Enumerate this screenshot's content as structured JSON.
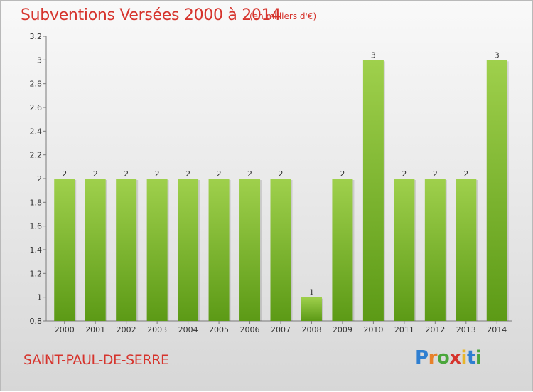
{
  "header": {
    "title": "Subventions Versées 2000 à 2014",
    "subtitle": "(en milliers d'€)"
  },
  "footer": {
    "town": "SAINT-PAUL-DE-SERRE",
    "logo": "Proxiti"
  },
  "colors": {
    "accent": "#d6342d",
    "bar_light": "#9fd04c",
    "bar_dark": "#5c9a16"
  },
  "chart_data": {
    "type": "bar",
    "title": "Subventions Versées 2000 à 2014",
    "subtitle": "(en milliers d'€)",
    "categories": [
      "2000",
      "2001",
      "2002",
      "2003",
      "2004",
      "2005",
      "2006",
      "2007",
      "2008",
      "2009",
      "2010",
      "2011",
      "2012",
      "2013",
      "2014"
    ],
    "values": [
      2,
      2,
      2,
      2,
      2,
      2,
      2,
      2,
      1,
      2,
      3,
      2,
      2,
      2,
      3
    ],
    "data_labels": [
      "2",
      "2",
      "2",
      "2",
      "2",
      "2",
      "2",
      "2",
      "1",
      "2",
      "3",
      "2",
      "2",
      "2",
      "3"
    ],
    "ylim": [
      0.8,
      3.2
    ],
    "yticks": [
      "0.8",
      "1",
      "1.2",
      "1.4",
      "1.6",
      "1.8",
      "2",
      "2.2",
      "2.4",
      "2.6",
      "2.8",
      "3",
      "3.2"
    ],
    "xlabel": "",
    "ylabel": "",
    "grid": false,
    "legend": "none"
  }
}
